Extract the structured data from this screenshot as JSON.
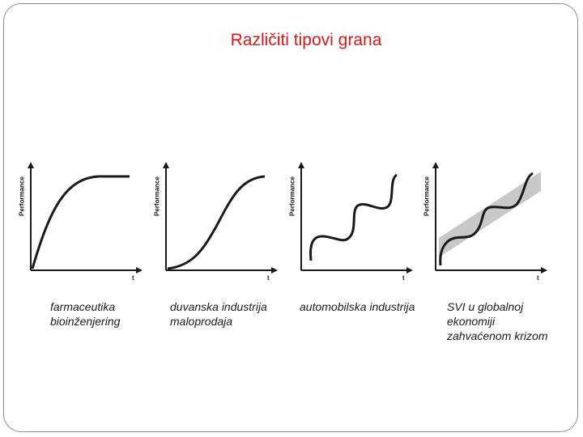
{
  "slide": {
    "title": "Različiti tipovi grana"
  },
  "panels": [
    {
      "ylabel": "Performance",
      "tlabel": "t",
      "caption": [
        "farmaceutika",
        "bioinženjering"
      ]
    },
    {
      "ylabel": "Performance",
      "tlabel": "t",
      "caption": [
        "duvanska industrija",
        "maloprodaja"
      ]
    },
    {
      "ylabel": "Performance",
      "tlabel": "t",
      "caption": [
        "automobilska industrija"
      ]
    },
    {
      "ylabel": "Performance",
      "tlabel": "t",
      "caption": [
        "SVI u globalnoj",
        "ekonomiji",
        "zahvaćenom krizom"
      ]
    }
  ],
  "colors": {
    "title": "#d01c1c",
    "curve": "#1a1a1a",
    "band": "#c8c8c8"
  }
}
